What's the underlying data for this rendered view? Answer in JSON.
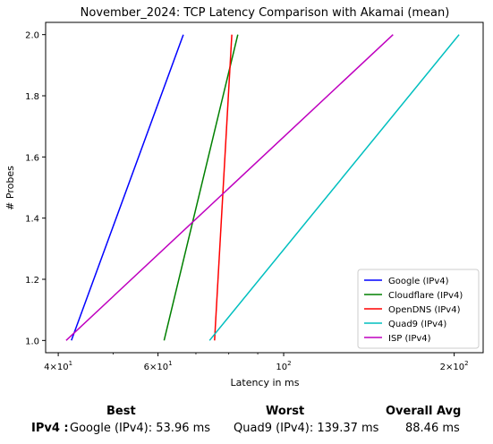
{
  "chart_data": {
    "type": "line",
    "title": "November_2024: TCP Latency Comparison with Akamai (mean)",
    "xlabel": "Latency in ms",
    "ylabel": "# Probes",
    "xscale": "log",
    "xlim": [
      38,
      225
    ],
    "ylim": [
      0.96,
      2.04
    ],
    "x_ticks": [
      {
        "value": 40,
        "base": "4",
        "mant": "10",
        "exp": "1"
      },
      {
        "value": 60,
        "base": "6",
        "mant": "10",
        "exp": "1"
      },
      {
        "value": 100,
        "base": "",
        "mant": "10",
        "exp": "2"
      },
      {
        "value": 200,
        "base": "2",
        "mant": "10",
        "exp": "2"
      }
    ],
    "y_ticks": [
      "1.0",
      "1.2",
      "1.4",
      "1.6",
      "1.8",
      "2.0"
    ],
    "grid": false,
    "legend_position": "lower-right",
    "series": [
      {
        "name": "Google (IPv4)",
        "color": "#0000ff",
        "x": [
          42.2,
          66.5
        ],
        "y": [
          1.0,
          2.0
        ]
      },
      {
        "name": "Cloudflare (IPv4)",
        "color": "#008000",
        "x": [
          61.5,
          83.0
        ],
        "y": [
          1.0,
          2.0
        ]
      },
      {
        "name": "OpenDNS (IPv4)",
        "color": "#ff0000",
        "x": [
          75.5,
          81.0
        ],
        "y": [
          1.0,
          2.0
        ]
      },
      {
        "name": "Quad9 (IPv4)",
        "color": "#00bfbf",
        "x": [
          74.0,
          204.0
        ],
        "y": [
          1.0,
          2.0
        ]
      },
      {
        "name": "ISP (IPv4)",
        "color": "#bf00bf",
        "x": [
          41.3,
          156.0
        ],
        "y": [
          1.0,
          2.0
        ]
      }
    ]
  },
  "summary": {
    "best_header": "Best",
    "worst_header": "Worst",
    "avg_header": "Overall Avg",
    "row_label": "IPv4 :",
    "best_value": "Google (IPv4): 53.96 ms",
    "worst_value": "Quad9 (IPv4): 139.37 ms",
    "avg_value": "88.46 ms"
  }
}
